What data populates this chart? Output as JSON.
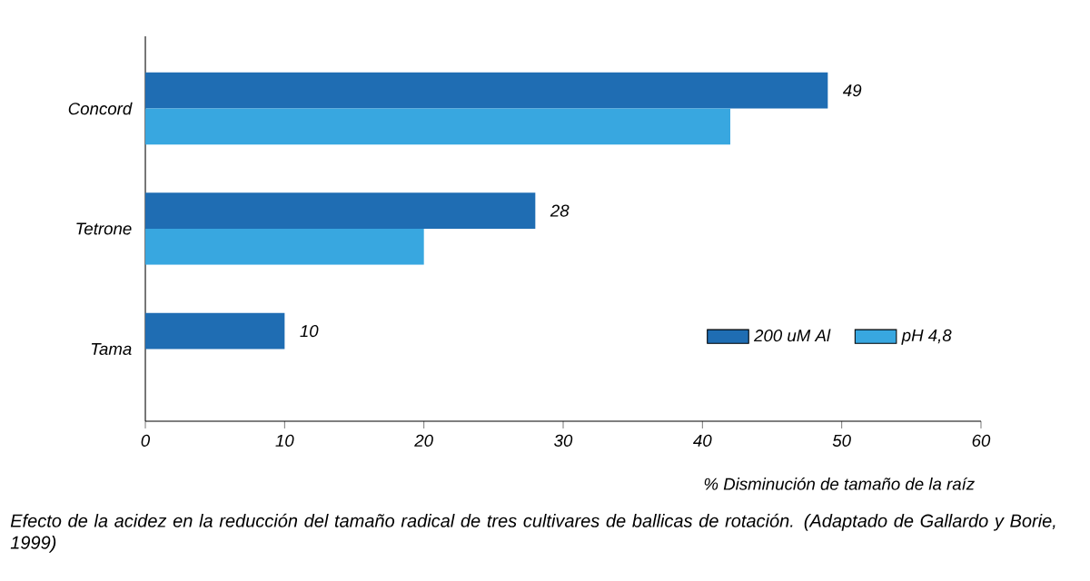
{
  "chart_data": {
    "type": "bar",
    "orientation": "horizontal",
    "categories": [
      "Concord",
      "Tetrone",
      "Tama"
    ],
    "series": [
      {
        "name": "200 uM Al",
        "color": "#1f6db3",
        "values": [
          49,
          28,
          10
        ],
        "value_labels": [
          "49",
          "28",
          "10"
        ]
      },
      {
        "name": "pH 4,8",
        "color": "#38a7e0",
        "values": [
          42,
          20,
          null
        ]
      }
    ],
    "xlim": [
      0,
      60
    ],
    "xticks": [
      0,
      10,
      20,
      30,
      40,
      50,
      60
    ],
    "xlabel": "% Disminución de tamaño de la raíz",
    "legend": "bottom right",
    "grid": false,
    "annotations": [
      "Efecto de la acidez en la reducción del tamaño radical de tres cultivares de ballicas de rotación. (Adaptado de Gallardo y Borie, 1999)"
    ]
  }
}
